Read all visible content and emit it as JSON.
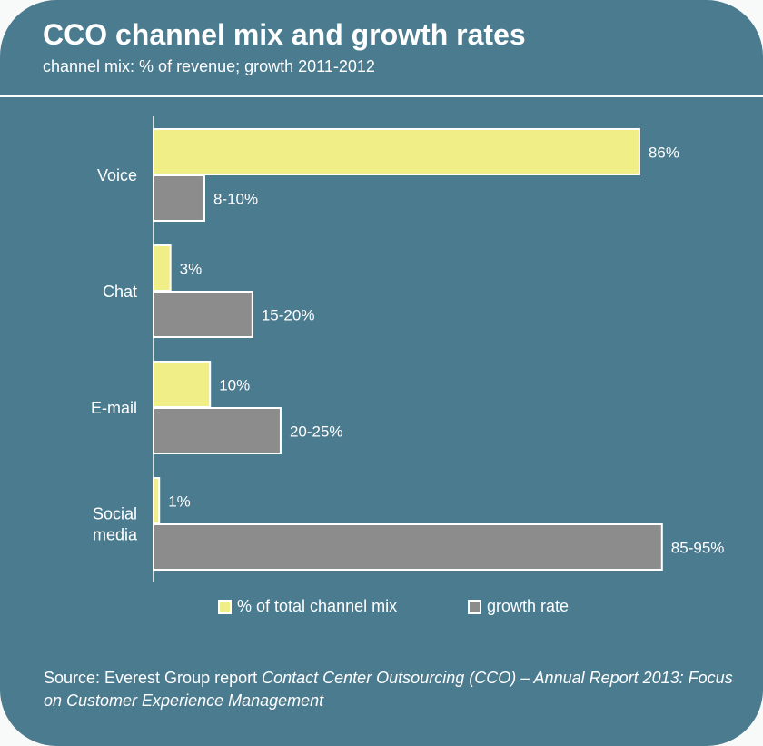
{
  "colors": {
    "background": "#4b7b8f",
    "mix": "#f0ee86",
    "growth": "#8c8c8c",
    "stroke": "#ffffff"
  },
  "header": {
    "title": "CCO channel mix and growth rates",
    "subtitle": "channel mix: % of revenue; growth 2011-2012"
  },
  "chart_data": {
    "type": "bar",
    "orientation": "horizontal",
    "categories": [
      "Voice",
      "Chat",
      "E-mail",
      "Social media"
    ],
    "series": [
      {
        "name": "% of total channel mix",
        "values": [
          86,
          3,
          10,
          1
        ],
        "labels": [
          "86%",
          "3%",
          "10%",
          "1%"
        ]
      },
      {
        "name": "growth rate",
        "values": [
          9,
          17.5,
          22.5,
          90
        ],
        "labels": [
          "8-10%",
          "15-20%",
          "20-25%",
          "85-95%"
        ]
      }
    ],
    "legend": "bottom",
    "grid": false
  },
  "source": {
    "prefix": "Source: Everest Group report ",
    "title": "Contact Center Outsourcing (CCO) – Annual Report 2013: Focus on Customer Experience Management"
  }
}
